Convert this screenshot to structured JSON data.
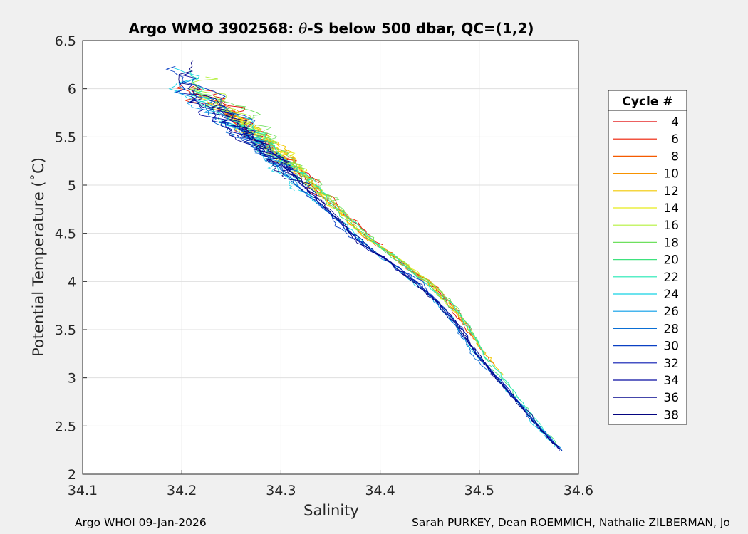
{
  "chart_data": {
    "type": "line",
    "title_prefix": "Argo WMO 3902568: ",
    "title_theta": "θ",
    "title_suffix": "-S below 500 dbar,  QC=(1,2)",
    "xlabel": "Salinity",
    "ylabel": "Potential Temperature (˚C)",
    "xlim": [
      34.1,
      34.6
    ],
    "ylim": [
      2,
      6.5
    ],
    "xticks": [
      "34.1",
      "34.2",
      "34.3",
      "34.4",
      "34.5",
      "34.6"
    ],
    "yticks": [
      "2",
      "2.5",
      "3",
      "3.5",
      "4",
      "4.5",
      "5",
      "5.5",
      "6",
      "6.5"
    ],
    "grid": true,
    "legend_title": "Cycle #",
    "legend_location": "outside-right",
    "series": [
      {
        "name": "4",
        "color": "#e10000"
      },
      {
        "name": "6",
        "color": "#ee1c00"
      },
      {
        "name": "8",
        "color": "#f55a00"
      },
      {
        "name": "10",
        "color": "#f79200"
      },
      {
        "name": "12",
        "color": "#f2c800"
      },
      {
        "name": "14",
        "color": "#e8ec1a"
      },
      {
        "name": "16",
        "color": "#b4f03c"
      },
      {
        "name": "18",
        "color": "#6ee05e"
      },
      {
        "name": "20",
        "color": "#3ee27e"
      },
      {
        "name": "22",
        "color": "#20e8b4"
      },
      {
        "name": "24",
        "color": "#14d2e4"
      },
      {
        "name": "26",
        "color": "#0a9ee8"
      },
      {
        "name": "28",
        "color": "#0a6ed4"
      },
      {
        "name": "30",
        "color": "#0a40c4"
      },
      {
        "name": "32",
        "color": "#0818b0"
      },
      {
        "name": "34",
        "color": "#080ca0"
      },
      {
        "name": "36",
        "color": "#06088e"
      },
      {
        "name": "38",
        "color": "#040480"
      }
    ],
    "trajectory": {
      "note": "approximate shared theta-S path followed by all cycles (salinity, theta)",
      "upper_spread_theta": 5.2,
      "path": [
        [
          34.205,
          6.0
        ],
        [
          34.22,
          5.9
        ],
        [
          34.24,
          5.75
        ],
        [
          34.26,
          5.6
        ],
        [
          34.28,
          5.45
        ],
        [
          34.3,
          5.25
        ],
        [
          34.32,
          5.05
        ],
        [
          34.34,
          4.85
        ],
        [
          34.36,
          4.65
        ],
        [
          34.38,
          4.45
        ],
        [
          34.4,
          4.3
        ],
        [
          34.42,
          4.15
        ],
        [
          34.44,
          4.0
        ],
        [
          34.46,
          3.8
        ],
        [
          34.48,
          3.55
        ],
        [
          34.5,
          3.25
        ],
        [
          34.52,
          3.0
        ],
        [
          34.54,
          2.75
        ],
        [
          34.56,
          2.5
        ],
        [
          34.585,
          2.22
        ]
      ]
    }
  },
  "footer": {
    "left": "Argo WHOI 09-Jan-2026",
    "right": "Sarah PURKEY, Dean ROEMMICH, Nathalie ZILBERMAN, Jo"
  }
}
